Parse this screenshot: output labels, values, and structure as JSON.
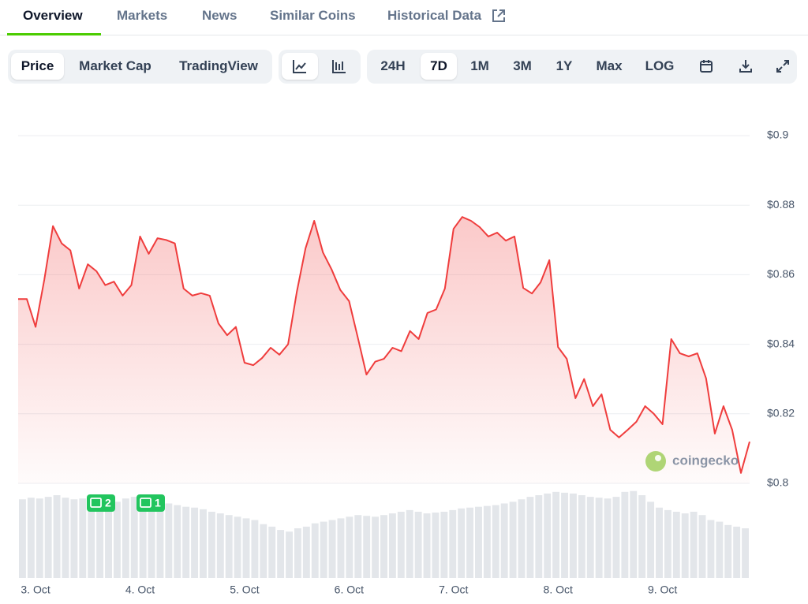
{
  "tabs": [
    "Overview",
    "Markets",
    "News",
    "Similar Coins",
    "Historical Data"
  ],
  "toolbar": {
    "views": [
      "Price",
      "Market Cap",
      "TradingView"
    ],
    "ranges": [
      "24H",
      "7D",
      "1M",
      "3M",
      "1Y",
      "Max",
      "LOG"
    ]
  },
  "chart_data": {
    "type": "line",
    "color": "#ef3d3d",
    "values": [
      0.853,
      0.853,
      0.845,
      0.8585,
      0.874,
      0.869,
      0.867,
      0.856,
      0.863,
      0.861,
      0.857,
      0.858,
      0.854,
      0.857,
      0.871,
      0.866,
      0.8705,
      0.87,
      0.869,
      0.856,
      0.854,
      0.8547,
      0.854,
      0.846,
      0.8426,
      0.845,
      0.8347,
      0.834,
      0.836,
      0.839,
      0.837,
      0.84,
      0.855,
      0.8676,
      0.8755,
      0.8664,
      0.8615,
      0.8556,
      0.8524,
      0.842,
      0.8313,
      0.835,
      0.8358,
      0.839,
      0.838,
      0.8438,
      0.8415,
      0.849,
      0.85,
      0.856,
      0.8732,
      0.8766,
      0.8755,
      0.8737,
      0.871,
      0.8721,
      0.8698,
      0.871,
      0.8562,
      0.8546,
      0.8578,
      0.8642,
      0.8392,
      0.8358,
      0.8245,
      0.83,
      0.8222,
      0.8256,
      0.8154,
      0.8132,
      0.8154,
      0.8177,
      0.8222,
      0.82,
      0.817,
      0.8415,
      0.8374,
      0.8365,
      0.8374,
      0.8302,
      0.8143,
      0.8222,
      0.8154,
      0.803,
      0.812
    ],
    "volume": [
      95,
      97,
      96,
      98,
      100,
      97,
      95,
      96,
      94,
      93,
      95,
      92,
      96,
      98,
      95,
      93,
      92,
      90,
      88,
      86,
      85,
      83,
      80,
      78,
      76,
      74,
      72,
      70,
      65,
      62,
      58,
      56,
      60,
      62,
      66,
      68,
      70,
      72,
      74,
      76,
      75,
      74,
      76,
      78,
      80,
      82,
      80,
      78,
      79,
      80,
      82,
      84,
      85,
      86,
      87,
      88,
      90,
      92,
      95,
      98,
      100,
      102,
      104,
      103,
      102,
      100,
      98,
      97,
      96,
      98,
      104,
      105,
      100,
      92,
      85,
      82,
      80,
      78,
      80,
      76,
      70,
      68,
      64,
      62,
      60
    ],
    "xlim": [
      0,
      84
    ],
    "xticks": [
      {
        "value": 2,
        "label": "3. Oct"
      },
      {
        "value": 14,
        "label": "4. Oct"
      },
      {
        "value": 26,
        "label": "5. Oct"
      },
      {
        "value": 38,
        "label": "6. Oct"
      },
      {
        "value": 50,
        "label": "7. Oct"
      },
      {
        "value": 62,
        "label": "8. Oct"
      },
      {
        "value": 74,
        "label": "9. Oct"
      }
    ],
    "ylim": [
      0.8,
      0.9
    ],
    "yticks": [
      {
        "value": 0.8,
        "label": "$0.8"
      },
      {
        "value": 0.82,
        "label": "$0.82"
      },
      {
        "value": 0.84,
        "label": "$0.84"
      },
      {
        "value": 0.86,
        "label": "$0.86"
      },
      {
        "value": 0.88,
        "label": "$0.88"
      },
      {
        "value": 0.9,
        "label": "$0.9"
      }
    ],
    "grid": true,
    "news_markers": [
      2,
      1
    ],
    "watermark": "coingecko"
  }
}
